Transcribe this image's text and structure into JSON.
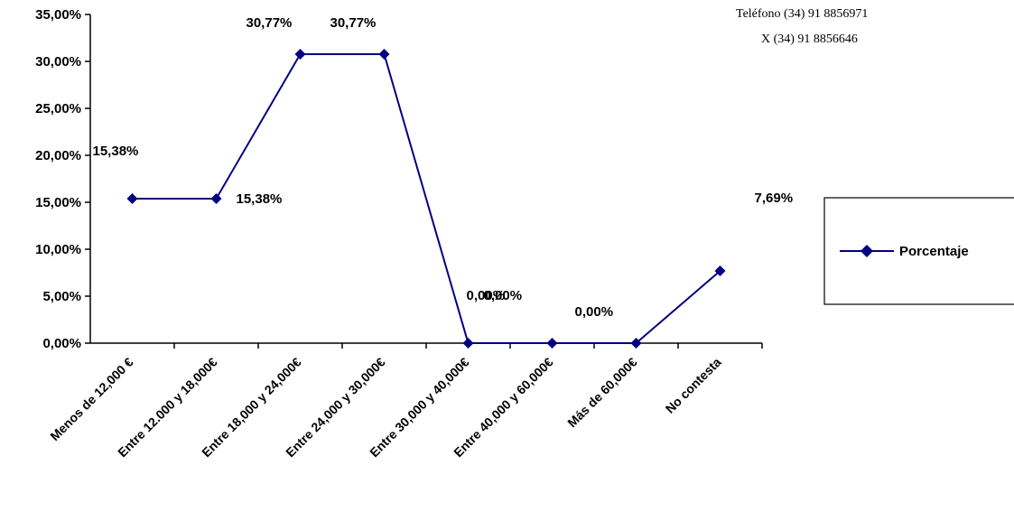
{
  "chart_data": {
    "type": "line",
    "categories": [
      "Menos de 12,000 €",
      "Entre 12.000 y 18,000€",
      "Entre 18,000 y 24,000€",
      "Entre 24,000 y 30,000€",
      "Entre 30,000 y 40,000€",
      "Entre 40,000 y 60,000€",
      "Más de 60,000€",
      "No contesta"
    ],
    "series": [
      {
        "name": "Porcentaje",
        "values": [
          15.38,
          15.38,
          30.77,
          30.77,
          0.0,
          0.0,
          0.0,
          7.69
        ],
        "color": "#000080"
      }
    ],
    "data_labels": [
      "15,38%",
      "15,38%",
      "30,77%",
      "30,77%",
      "0,00%",
      "0,00%",
      "0,00%",
      "7,69%"
    ],
    "y_ticks": [
      "0,00%",
      "5,00%",
      "10,00%",
      "15,00%",
      "20,00%",
      "25,00%",
      "30,00%",
      "35,00%"
    ],
    "ylim": [
      0,
      35
    ],
    "grid": false,
    "legend_position": "right",
    "title": "",
    "xlabel": "",
    "ylabel": ""
  },
  "background_text": {
    "phone": "Teléfono (34) 91 8856971",
    "fax": "X (34) 91 8856646"
  }
}
